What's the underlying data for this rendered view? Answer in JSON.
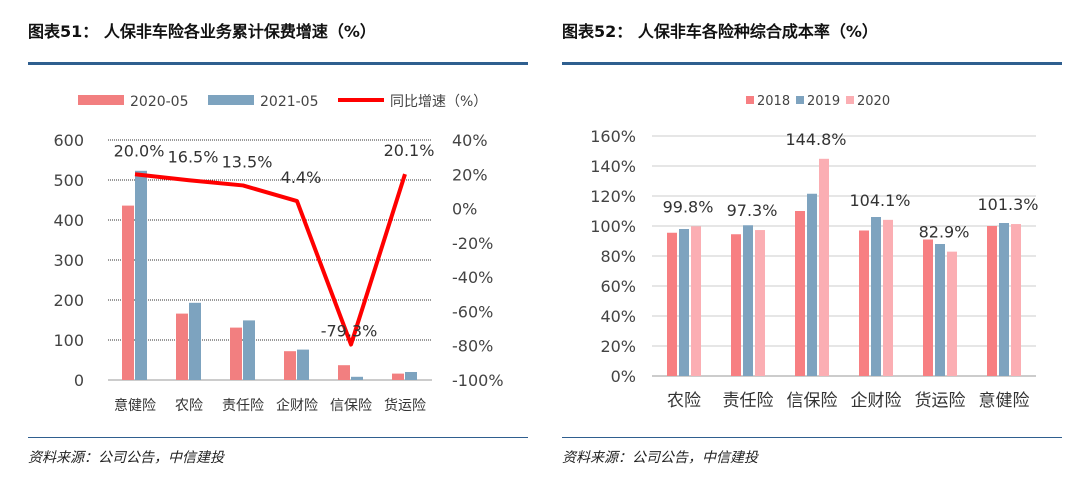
{
  "charts": [
    {
      "title": "图表51： 人保非车险各业务累计保费增速（%）",
      "source": "资料来源：公司公告，中信建投",
      "chart_data": {
        "type": "bar",
        "categories": [
          "意健险",
          "农险",
          "责任险",
          "企财险",
          "信保险",
          "货运险"
        ],
        "series": [
          {
            "name": "2020-05",
            "type": "bar",
            "axis": "left",
            "color": "#f27f80",
            "values": [
              436,
              166,
              131,
              72,
              37,
              16
            ]
          },
          {
            "name": "2021-05",
            "type": "bar",
            "axis": "left",
            "color": "#7da3bf",
            "values": [
              523,
              193,
              149,
              76,
              8,
              20
            ]
          },
          {
            "name": "同比增速（%）",
            "type": "line",
            "axis": "right",
            "color": "#ff0000",
            "values": [
              20.0,
              16.5,
              13.5,
              4.4,
              -79.3,
              20.1
            ]
          }
        ],
        "data_labels": [
          "20.0%",
          "16.5%",
          "13.5%",
          "4.4%",
          "-79.3%",
          "20.1%"
        ],
        "ylim": [
          0,
          600
        ],
        "yticks": [
          "600",
          "500",
          "400",
          "300",
          "200",
          "100",
          "0"
        ],
        "y2lim": [
          -100,
          40
        ],
        "y2ticks": [
          "40%",
          "20%",
          "0%",
          "-20%",
          "-40%",
          "-60%",
          "-80%",
          "-100%"
        ],
        "grid": true,
        "legend": "top"
      }
    },
    {
      "title": "图表52： 人保非车各险种综合成本率（%）",
      "source": "资料来源：公司公告，中信建投",
      "chart_data": {
        "type": "bar",
        "categories": [
          "农险",
          "责任险",
          "信保险",
          "企财险",
          "货运险",
          "意健险"
        ],
        "series": [
          {
            "name": "2018",
            "color": "#f77f82",
            "values": [
              95.5,
              94.5,
              110.0,
              97.0,
              91.0,
              100.0
            ]
          },
          {
            "name": "2019",
            "color": "#7ea3bf",
            "values": [
              98.0,
              100.5,
              121.5,
              106.0,
              88.0,
              102.0
            ]
          },
          {
            "name": "2020",
            "color": "#fbaeb3",
            "values": [
              99.8,
              97.3,
              144.8,
              104.1,
              82.9,
              101.3
            ]
          }
        ],
        "data_labels": [
          "99.8%",
          "97.3%",
          "144.8%",
          "104.1%",
          "82.9%",
          "101.3%"
        ],
        "ylim": [
          0,
          160
        ],
        "yticks": [
          "160%",
          "140%",
          "120%",
          "100%",
          "80%",
          "60%",
          "40%",
          "20%",
          "0%"
        ],
        "grid": true,
        "legend": "top"
      }
    }
  ]
}
